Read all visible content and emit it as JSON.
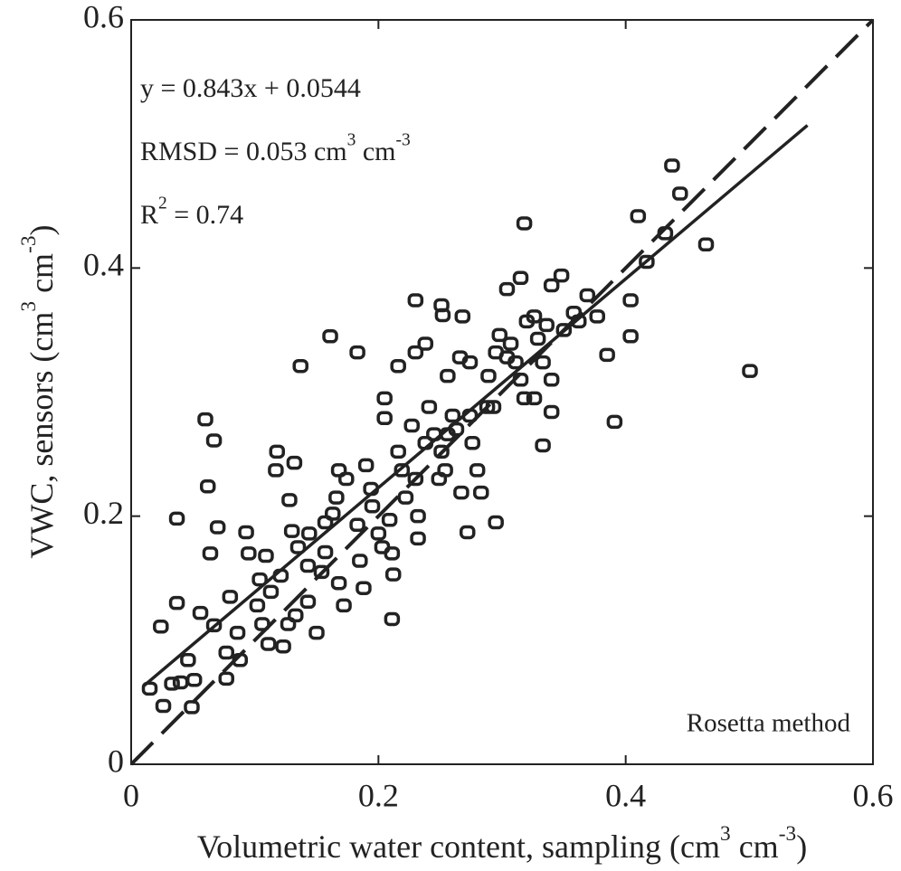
{
  "chart_data": {
    "type": "scatter",
    "xlim": [
      0,
      0.6
    ],
    "ylim": [
      0,
      0.6
    ],
    "xticks": [
      0,
      0.2,
      0.4,
      0.6
    ],
    "yticks": [
      0,
      0.2,
      0.4,
      0.6
    ],
    "marker_color": "#222",
    "x": [
      0.5005,
      0.4375,
      0.444,
      0.41,
      0.318,
      0.465,
      0.432,
      0.417,
      0.391,
      0.404,
      0.404,
      0.385,
      0.377,
      0.369,
      0.348,
      0.34,
      0.315,
      0.304,
      0.333,
      0.34,
      0.333,
      0.34,
      0.326,
      0.295,
      0.272,
      0.23,
      0.251,
      0.252,
      0.238,
      0.23,
      0.216,
      0.161,
      0.183,
      0.137,
      0.06,
      0.067,
      0.062,
      0.037,
      0.07,
      0.093,
      0.037,
      0.024,
      0.056,
      0.067,
      0.08,
      0.095,
      0.109,
      0.118,
      0.117,
      0.132,
      0.128,
      0.13,
      0.135,
      0.143,
      0.121,
      0.113,
      0.102,
      0.086,
      0.077,
      0.077,
      0.051,
      0.046,
      0.04,
      0.033,
      0.026,
      0.049,
      0.015,
      0.088,
      0.106,
      0.111,
      0.123,
      0.127,
      0.133,
      0.143,
      0.15,
      0.168,
      0.172,
      0.157,
      0.157,
      0.166,
      0.168,
      0.174,
      0.183,
      0.185,
      0.188,
      0.19,
      0.194,
      0.195,
      0.2,
      0.203,
      0.205,
      0.205,
      0.209,
      0.211,
      0.212,
      0.211,
      0.216,
      0.219,
      0.222,
      0.227,
      0.23,
      0.232,
      0.232,
      0.238,
      0.241,
      0.245,
      0.251,
      0.249,
      0.254,
      0.256,
      0.26,
      0.263,
      0.256,
      0.266,
      0.268,
      0.274,
      0.276,
      0.28,
      0.283,
      0.267,
      0.288,
      0.289,
      0.295,
      0.298,
      0.304,
      0.307,
      0.311,
      0.315,
      0.32,
      0.326,
      0.329,
      0.336,
      0.35,
      0.358,
      0.362,
      0.293,
      0.318,
      0.274,
      0.163,
      0.154,
      0.144,
      0.064,
      0.104
    ],
    "values": [
      0.317,
      0.4826,
      0.46,
      0.4418,
      0.436,
      0.419,
      0.428,
      0.405,
      0.276,
      0.374,
      0.345,
      0.33,
      0.361,
      0.378,
      0.394,
      0.386,
      0.392,
      0.383,
      0.324,
      0.31,
      0.257,
      0.284,
      0.295,
      0.195,
      0.187,
      0.374,
      0.37,
      0.362,
      0.339,
      0.332,
      0.321,
      0.345,
      0.332,
      0.321,
      0.278,
      0.261,
      0.224,
      0.198,
      0.191,
      0.187,
      0.13,
      0.111,
      0.122,
      0.112,
      0.135,
      0.17,
      0.168,
      0.252,
      0.237,
      0.243,
      0.213,
      0.188,
      0.175,
      0.16,
      0.152,
      0.139,
      0.128,
      0.106,
      0.09,
      0.069,
      0.068,
      0.084,
      0.066,
      0.065,
      0.047,
      0.046,
      0.061,
      0.084,
      0.113,
      0.097,
      0.095,
      0.113,
      0.12,
      0.131,
      0.106,
      0.146,
      0.128,
      0.171,
      0.195,
      0.215,
      0.237,
      0.23,
      0.193,
      0.164,
      0.142,
      0.241,
      0.222,
      0.208,
      0.186,
      0.175,
      0.295,
      0.279,
      0.197,
      0.17,
      0.153,
      0.117,
      0.252,
      0.237,
      0.215,
      0.273,
      0.23,
      0.2,
      0.182,
      0.259,
      0.288,
      0.266,
      0.252,
      0.23,
      0.237,
      0.266,
      0.281,
      0.27,
      0.313,
      0.328,
      0.361,
      0.281,
      0.259,
      0.237,
      0.219,
      0.219,
      0.288,
      0.313,
      0.332,
      0.346,
      0.328,
      0.339,
      0.324,
      0.31,
      0.357,
      0.361,
      0.343,
      0.354,
      0.35,
      0.364,
      0.357,
      0.288,
      0.295,
      0.324,
      0.202,
      0.155,
      0.186,
      0.17,
      0.149
    ],
    "lines": [
      {
        "x": [
          0,
          0.6
        ],
        "y": [
          0,
          0.6
        ],
        "dash": true
      },
      {
        "x": [
          0.01,
          0.547
        ],
        "y": [
          0.063,
          0.515
        ],
        "dash": false
      }
    ],
    "annotations": [
      {
        "parts": [
          {
            "text": "y = 0.843x + 0.0544"
          }
        ]
      },
      {
        "parts": [
          {
            "text": "RMSD = 0.053 cm"
          },
          {
            "text": "3",
            "sup": true
          },
          {
            "text": " cm"
          },
          {
            "text": "-3",
            "sup": true
          }
        ]
      },
      {
        "parts": [
          {
            "text": "R"
          },
          {
            "text": "2",
            "sup": true
          },
          {
            "text": " = 0.74"
          }
        ]
      }
    ],
    "method_label": "Rosetta method",
    "xlabel": {
      "parts": [
        {
          "text": "Volumetric water content, sampling (cm"
        },
        {
          "text": "3",
          "sup": true
        },
        {
          "text": " cm"
        },
        {
          "text": "-3",
          "sup": true
        },
        {
          "text": ")"
        }
      ]
    },
    "ylabel": {
      "parts": [
        {
          "text": "VWC, sensors (cm"
        },
        {
          "text": "3",
          "sup": true
        },
        {
          "text": " cm"
        },
        {
          "text": "-3",
          "sup": true
        },
        {
          "text": ")"
        }
      ]
    }
  }
}
